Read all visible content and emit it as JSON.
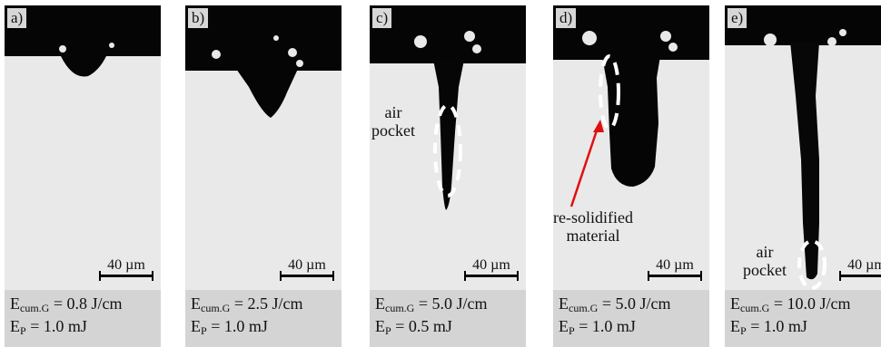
{
  "scale_label": "40 µm",
  "panels": [
    {
      "letter": "a)",
      "e_sym": "E",
      "e_sub": "cum.G",
      "e_val": "= 0.8 J/cm",
      "p_sym": "E",
      "p_sub": "P",
      "p_val": "= 1.0 mJ"
    },
    {
      "letter": "b)",
      "e_sym": "E",
      "e_sub": "cum.G",
      "e_val": "= 2.5 J/cm",
      "p_sym": "E",
      "p_sub": "P",
      "p_val": "= 1.0 mJ"
    },
    {
      "letter": "c)",
      "e_sym": "E",
      "e_sub": "cum.G",
      "e_val": "= 5.0 J/cm",
      "p_sym": "E",
      "p_sub": "P",
      "p_val": "= 0.5 mJ"
    },
    {
      "letter": "d)",
      "e_sym": "E",
      "e_sub": "cum.G",
      "e_val": "= 5.0 J/cm",
      "p_sym": "E",
      "p_sub": "P",
      "p_val": "= 1.0 mJ"
    },
    {
      "letter": "e)",
      "e_sym": "E",
      "e_sub": "cum.G",
      "e_val": "= 10.0 J/cm",
      "p_sym": "E",
      "p_sub": "P",
      "p_val": "= 1.0 mJ"
    }
  ],
  "annotations": {
    "c_air": "air",
    "c_pocket": "pocket",
    "d_resolid_1": "re-solidified",
    "d_resolid_2": "material",
    "e_air": "air",
    "e_pocket": "pocket"
  },
  "colors": {
    "background": "#000000",
    "material": "#e9e9e9",
    "caption": "#d4d4d4",
    "arrow": "#e01010",
    "dash": "#ffffff"
  }
}
